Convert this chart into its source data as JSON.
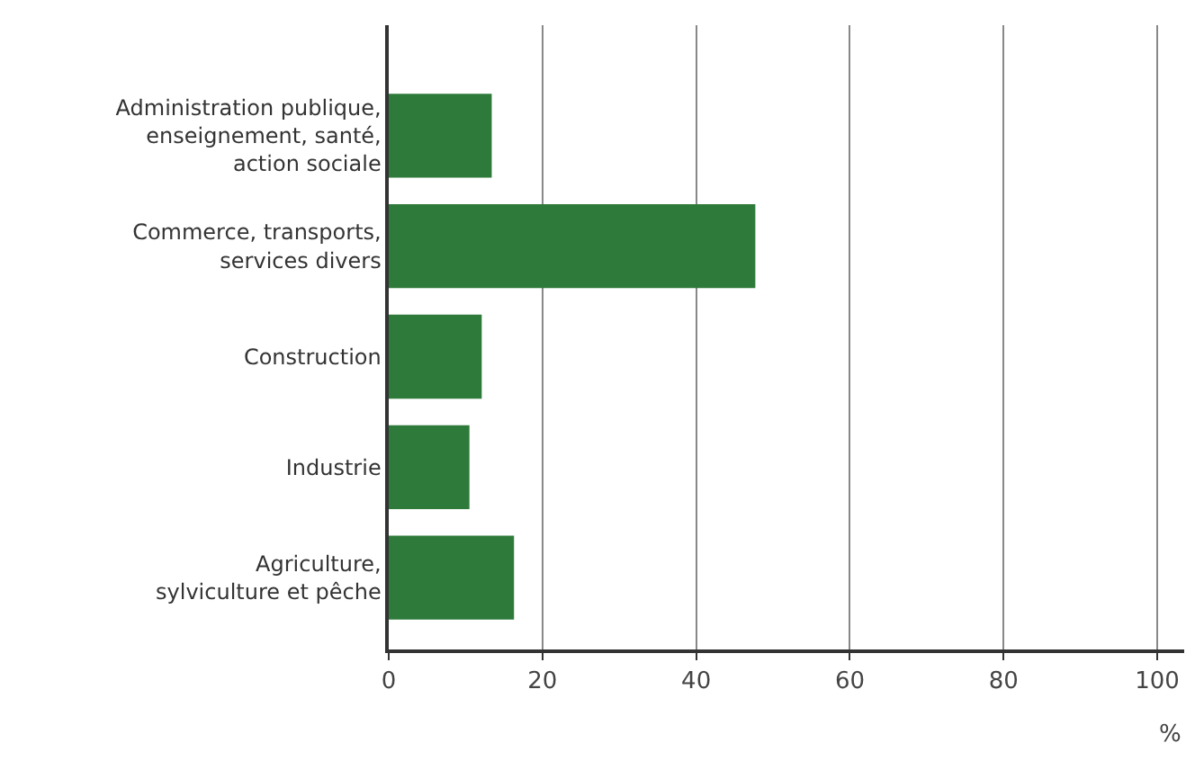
{
  "chart_data": {
    "type": "bar",
    "orientation": "horizontal",
    "categories": [
      "Administration publique, enseignement, santé, action sociale",
      "Commerce, transports, services divers",
      "Construction",
      "Industrie",
      "Agriculture, sylviculture et pêche"
    ],
    "values": [
      13.4,
      47.7,
      12.1,
      10.5,
      16.3
    ],
    "color": "#2e7a3a",
    "xlabel": "%",
    "xlim": [
      0,
      103.5
    ],
    "xticks": [
      0,
      20,
      40,
      60,
      80,
      100
    ],
    "grid": "x",
    "legend": false
  }
}
